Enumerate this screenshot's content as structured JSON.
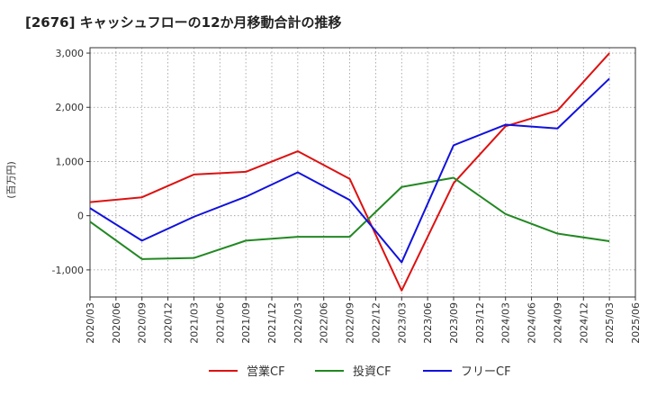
{
  "chart_data": {
    "type": "line",
    "title": "[2676]  キャッシュフローの12か月移動合計の推移",
    "ylabel": "(百万円)",
    "xlabel": "",
    "ylim": [
      -1500,
      3100
    ],
    "yticks": [
      3000,
      2000,
      1000,
      0,
      -1000
    ],
    "ytick_labels": [
      "3,000",
      "2,000",
      "1,000",
      "0",
      "-1,000"
    ],
    "x_ticks": [
      "2020/03",
      "2020/06",
      "2020/09",
      "2020/12",
      "2021/03",
      "2021/06",
      "2021/09",
      "2021/12",
      "2022/03",
      "2022/06",
      "2022/09",
      "2022/12",
      "2023/03",
      "2023/06",
      "2023/09",
      "2023/12",
      "2024/03",
      "2024/06",
      "2024/09",
      "2024/12",
      "2025/03",
      "2025/06"
    ],
    "categories": [
      "2020/03",
      "2020/09",
      "2021/03",
      "2021/09",
      "2022/03",
      "2022/09",
      "2023/03",
      "2023/09",
      "2024/03",
      "2024/09",
      "2025/03"
    ],
    "series": [
      {
        "name": "営業CF",
        "color": "#dd1111",
        "values": [
          250,
          340,
          760,
          810,
          1190,
          680,
          -1380,
          600,
          1650,
          1940,
          3000
        ]
      },
      {
        "name": "投資CF",
        "color": "#228822",
        "values": [
          -110,
          -800,
          -780,
          -460,
          -390,
          -390,
          530,
          700,
          30,
          -330,
          -470
        ]
      },
      {
        "name": "フリーCF",
        "color": "#1111dd",
        "values": [
          140,
          -460,
          -20,
          350,
          800,
          290,
          -860,
          1300,
          1680,
          1610,
          2530
        ]
      }
    ],
    "grid": true,
    "legend": "bottom"
  }
}
